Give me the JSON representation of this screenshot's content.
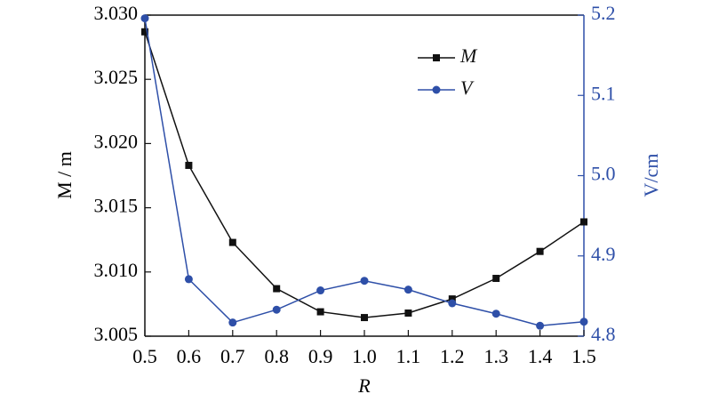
{
  "chart_data": {
    "type": "line",
    "x_label": "R",
    "y_label": "M / m",
    "y2_label": "V/cm",
    "x": [
      0.5,
      0.6,
      0.7,
      0.8,
      0.9,
      1.0,
      1.1,
      1.2,
      1.3,
      1.4,
      1.5
    ],
    "xlim": [
      0.5,
      1.5
    ],
    "xticks": [
      0.5,
      0.6,
      0.7,
      0.8,
      0.9,
      {
        "value": 1.0,
        "label": "1.0"
      },
      1.1,
      1.2,
      1.3,
      1.4,
      1.5
    ],
    "ylim": [
      3.005,
      3.03
    ],
    "yticks": [
      3.005,
      {
        "value": 3.01,
        "label": "3.010"
      },
      3.015,
      {
        "value": 3.02,
        "label": "3.020"
      },
      3.025,
      {
        "value": 3.03,
        "label": "3.030"
      }
    ],
    "y2lim": [
      4.8,
      5.2
    ],
    "y2ticks": [
      4.8,
      4.9,
      {
        "value": 5.0,
        "label": "5.0"
      },
      5.1,
      5.2
    ],
    "y2_color": "#2e4fa8",
    "series": [
      {
        "name": "M",
        "color": "#111111",
        "marker": "square",
        "values": [
          3.0287,
          3.0183,
          3.0123,
          3.0087,
          3.0069,
          3.00645,
          3.0068,
          3.0079,
          3.0095,
          3.0116,
          3.0139
        ]
      },
      {
        "name": "V",
        "color": "#2e4fa8",
        "marker": "circle",
        "axis": "y2",
        "values": [
          5.196,
          4.871,
          4.817,
          4.833,
          4.857,
          4.869,
          4.858,
          4.841,
          4.828,
          4.813,
          4.818
        ]
      }
    ]
  }
}
